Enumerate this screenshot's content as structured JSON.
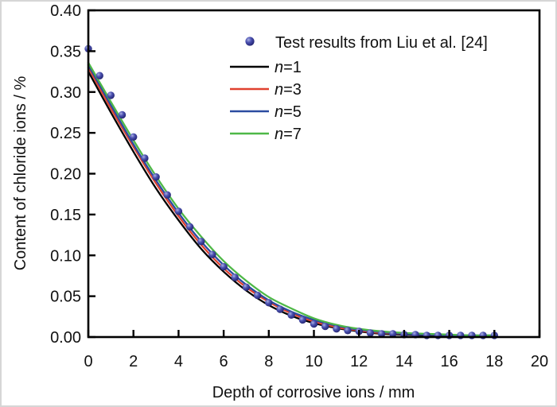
{
  "chart_data": {
    "type": "line+scatter",
    "title": "",
    "xlabel": "Depth of corrosive ions / mm",
    "ylabel": "Content of chloride ions / %",
    "xlim": [
      0,
      20
    ],
    "ylim": [
      0.0,
      0.4
    ],
    "x_ticks": [
      0,
      2,
      4,
      6,
      8,
      10,
      12,
      14,
      16,
      18,
      20
    ],
    "y_ticks": [
      "0.00",
      "0.05",
      "0.10",
      "0.15",
      "0.20",
      "0.25",
      "0.30",
      "0.35",
      "0.40"
    ],
    "grid": false,
    "legend_position": "inside-top",
    "frame": "full-box",
    "scatter": {
      "name": "Test results from Liu et al. [24]",
      "marker": "sphere",
      "marker_color": "#3d3f9f",
      "x": [
        0,
        0.5,
        1,
        1.5,
        2,
        2.5,
        3,
        3.5,
        4,
        4.5,
        5,
        5.5,
        6,
        6.5,
        7,
        7.5,
        8,
        8.5,
        9,
        9.5,
        10,
        10.5,
        11,
        11.5,
        12,
        12.5,
        13,
        13.5,
        14,
        14.5,
        15,
        15.5,
        16,
        16.5,
        17,
        17.5,
        18
      ],
      "y": [
        0.353,
        0.32,
        0.296,
        0.272,
        0.245,
        0.219,
        0.196,
        0.174,
        0.154,
        0.135,
        0.117,
        0.101,
        0.086,
        0.073,
        0.061,
        0.051,
        0.042,
        0.034,
        0.027,
        0.021,
        0.016,
        0.013,
        0.01,
        0.008,
        0.007,
        0.005,
        0.004,
        0.004,
        0.003,
        0.003,
        0.002,
        0.002,
        0.002,
        0.002,
        0.002,
        0.002,
        0.002
      ]
    },
    "series_x": [
      0,
      1,
      2,
      3,
      4,
      5,
      6,
      7,
      8,
      9,
      10,
      11,
      12,
      13,
      14,
      15,
      16,
      17,
      18
    ],
    "series": [
      {
        "name": "n=1",
        "label_italic": "n",
        "label_rest": "=1",
        "color": "#000000",
        "values": [
          0.325,
          0.275,
          0.227,
          0.182,
          0.143,
          0.108,
          0.08,
          0.057,
          0.039,
          0.026,
          0.017,
          0.011,
          0.007,
          0.004,
          0.003,
          0.002,
          0.002,
          0.001,
          0.001
        ]
      },
      {
        "name": "n=3",
        "label_italic": "n",
        "label_rest": "=3",
        "color": "#e0412f",
        "values": [
          0.33,
          0.28,
          0.233,
          0.188,
          0.148,
          0.113,
          0.084,
          0.061,
          0.043,
          0.029,
          0.019,
          0.012,
          0.008,
          0.005,
          0.004,
          0.003,
          0.002,
          0.002,
          0.001
        ]
      },
      {
        "name": "n=5",
        "label_italic": "n",
        "label_rest": "=5",
        "color": "#2b4ba0",
        "values": [
          0.333,
          0.284,
          0.236,
          0.192,
          0.152,
          0.117,
          0.088,
          0.064,
          0.045,
          0.031,
          0.021,
          0.014,
          0.009,
          0.006,
          0.004,
          0.003,
          0.002,
          0.002,
          0.002
        ]
      },
      {
        "name": "n=7",
        "label_italic": "n",
        "label_rest": "=7",
        "color": "#4eb847",
        "values": [
          0.336,
          0.288,
          0.241,
          0.197,
          0.157,
          0.123,
          0.093,
          0.069,
          0.049,
          0.035,
          0.023,
          0.015,
          0.01,
          0.007,
          0.005,
          0.004,
          0.003,
          0.002,
          0.002
        ]
      }
    ],
    "marker_gradient": {
      "highlight": "#aab0e2",
      "mid": "#4a50b0",
      "edge": "#232470"
    },
    "axis_color": "#000000"
  }
}
